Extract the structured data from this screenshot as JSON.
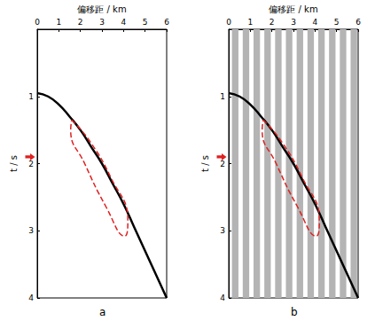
{
  "chart_data": [
    {
      "type": "line",
      "label": "a",
      "xlabel": "偏移距 / km",
      "ylabel": "t / s",
      "xlim": [
        0,
        6
      ],
      "xticks": [
        0,
        1,
        2,
        3,
        4,
        5,
        6
      ],
      "ylim": [
        0,
        4
      ],
      "yticks": [
        1,
        2,
        3,
        4
      ],
      "x": [
        0,
        0.5,
        1,
        1.5,
        2,
        2.5,
        3,
        3.5,
        4,
        4.5,
        5,
        5.5,
        6
      ],
      "series": [
        {
          "color": "#000000",
          "values": [
            0.95,
            1.0,
            1.12,
            1.3,
            1.5,
            1.75,
            2.0,
            2.3,
            2.6,
            2.95,
            3.3,
            3.65,
            4.0
          ]
        }
      ],
      "region": {
        "x": [
          1.6,
          2.4,
          3.4,
          4.2,
          4.05,
          3.2,
          2.2,
          1.55
        ],
        "t": [
          1.35,
          1.65,
          2.2,
          2.85,
          3.08,
          2.65,
          2.0,
          1.5
        ],
        "color": "#e02020",
        "line_style": "dashed"
      },
      "arrow_t": 1.9
    },
    {
      "type": "line",
      "label": "b",
      "xlabel": "偏移距 / km",
      "ylabel": "t / s",
      "xlim": [
        0,
        6
      ],
      "xticks": [
        0,
        1,
        2,
        3,
        4,
        5,
        6
      ],
      "ylim": [
        0,
        4
      ],
      "yticks": [
        1,
        2,
        3,
        4
      ],
      "x": [
        0,
        0.5,
        1,
        1.5,
        2,
        2.5,
        3,
        3.5,
        4,
        4.5,
        5,
        5.5,
        6
      ],
      "series": [
        {
          "color": "#000000",
          "values": [
            0.95,
            1.0,
            1.12,
            1.3,
            1.5,
            1.75,
            2.0,
            2.3,
            2.6,
            2.95,
            3.3,
            3.65,
            4.0
          ]
        }
      ],
      "region": {
        "x": [
          1.6,
          2.4,
          3.4,
          4.2,
          4.05,
          3.2,
          2.2,
          1.55
        ],
        "t": [
          1.35,
          1.65,
          2.2,
          2.85,
          3.08,
          2.65,
          2.0,
          1.5
        ],
        "color": "#e02020",
        "line_style": "dashed"
      },
      "arrow_t": 1.9,
      "gaps": [
        [
          0.15,
          0.45
        ],
        [
          0.65,
          0.95
        ],
        [
          1.15,
          1.45
        ],
        [
          1.65,
          1.95
        ],
        [
          2.15,
          2.45
        ],
        [
          2.65,
          2.95
        ],
        [
          3.15,
          3.45
        ],
        [
          3.65,
          3.95
        ],
        [
          4.15,
          4.45
        ],
        [
          4.65,
          4.95
        ],
        [
          5.15,
          5.45
        ],
        [
          5.65,
          5.95
        ]
      ]
    }
  ]
}
